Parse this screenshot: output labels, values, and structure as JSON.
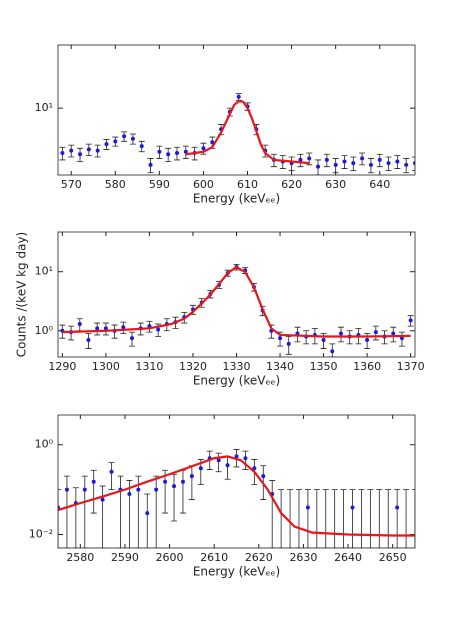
{
  "chart_data": [
    {
      "type": "scatter",
      "xlabel": "Energy (keVₑₑ)",
      "log_y": true,
      "color": "#1c1cd6",
      "error_color": "#222222",
      "xlim": [
        567,
        648
      ],
      "ylim": [
        1.5,
        60
      ],
      "xticks": [
        570,
        580,
        590,
        600,
        610,
        620,
        630,
        640
      ],
      "yticks": [
        {
          "value": 10,
          "label": "10¹"
        }
      ],
      "x": [
        568,
        570,
        572,
        574,
        576,
        578,
        580,
        582,
        584,
        586,
        588,
        590,
        592,
        594,
        596,
        598,
        600,
        602,
        604,
        606,
        608,
        610,
        612,
        614,
        616,
        618,
        620,
        622,
        624,
        626,
        628,
        630,
        632,
        634,
        636,
        638,
        640,
        642,
        644,
        646,
        648
      ],
      "values": [
        2.8,
        3.0,
        2.7,
        3.1,
        3.0,
        3.6,
        3.9,
        4.5,
        4.2,
        3.4,
        2.0,
        2.9,
        2.7,
        2.8,
        2.9,
        2.8,
        3.2,
        3.8,
        5.5,
        9.0,
        13.8,
        10.5,
        5.5,
        3.0,
        2.3,
        2.2,
        2.1,
        2.3,
        2.4,
        1.9,
        2.3,
        2.0,
        2.2,
        2.1,
        2.4,
        2.0,
        2.3,
        2.1,
        2.2,
        2.0,
        2.1
      ],
      "errors": [
        0.5,
        0.5,
        0.5,
        0.5,
        0.5,
        0.5,
        0.5,
        0.6,
        0.6,
        0.5,
        0.4,
        0.5,
        0.5,
        0.5,
        0.5,
        0.5,
        0.5,
        0.6,
        0.8,
        1.0,
        1.3,
        1.1,
        0.8,
        0.5,
        0.4,
        0.4,
        0.4,
        0.4,
        0.4,
        0.4,
        0.4,
        0.4,
        0.4,
        0.4,
        0.4,
        0.4,
        0.4,
        0.4,
        0.4,
        0.4,
        0.4
      ],
      "fit": {
        "color": "#e8161b",
        "x": [
          596,
          600,
          602,
          604,
          606,
          607,
          608,
          609,
          610,
          611,
          612,
          613,
          614,
          616,
          620,
          624
        ],
        "values": [
          2.7,
          2.9,
          3.3,
          5.0,
          8.5,
          11,
          12.2,
          12,
          10,
          7.5,
          5.2,
          3.6,
          2.8,
          2.3,
          2.2,
          2.1
        ]
      }
    },
    {
      "type": "scatter",
      "xlabel": "Energy (keVₑₑ)",
      "ylabel": "Counts /(keV  kg  day)",
      "log_y": true,
      "color": "#1c1cd6",
      "error_color": "#222222",
      "xlim": [
        1289,
        1371
      ],
      "ylim": [
        0.36,
        47
      ],
      "xticks": [
        1290,
        1300,
        1310,
        1320,
        1330,
        1340,
        1350,
        1360,
        1370
      ],
      "yticks": [
        {
          "value": 1,
          "label": "10⁰"
        },
        {
          "value": 10,
          "label": "10¹"
        }
      ],
      "x": [
        1290,
        1292,
        1294,
        1296,
        1298,
        1300,
        1302,
        1304,
        1306,
        1308,
        1310,
        1312,
        1314,
        1316,
        1318,
        1320,
        1322,
        1324,
        1326,
        1328,
        1330,
        1332,
        1334,
        1336,
        1338,
        1340,
        1342,
        1344,
        1346,
        1348,
        1350,
        1352,
        1354,
        1356,
        1358,
        1360,
        1362,
        1364,
        1366,
        1368,
        1370
      ],
      "values": [
        1.0,
        0.95,
        1.3,
        0.7,
        1.1,
        1.1,
        1.0,
        1.15,
        0.75,
        1.1,
        1.2,
        1.05,
        1.3,
        1.4,
        1.7,
        2.3,
        3.0,
        4.2,
        6.0,
        9.5,
        12.0,
        10.5,
        5.5,
        2.2,
        1.0,
        0.75,
        0.6,
        0.9,
        0.8,
        0.85,
        0.7,
        0.45,
        0.9,
        0.8,
        0.85,
        0.7,
        0.95,
        0.8,
        0.9,
        0.75,
        1.5
      ],
      "errors": [
        0.25,
        0.25,
        0.3,
        0.2,
        0.25,
        0.25,
        0.25,
        0.25,
        0.2,
        0.25,
        0.25,
        0.25,
        0.3,
        0.3,
        0.35,
        0.4,
        0.5,
        0.6,
        0.8,
        1.1,
        1.3,
        1.2,
        0.8,
        0.4,
        0.25,
        0.2,
        0.2,
        0.25,
        0.2,
        0.25,
        0.2,
        0.15,
        0.25,
        0.2,
        0.25,
        0.2,
        0.25,
        0.2,
        0.25,
        0.2,
        0.3
      ],
      "fit": {
        "color": "#e8161b",
        "x": [
          1290,
          1300,
          1310,
          1315,
          1318,
          1320,
          1322,
          1324,
          1326,
          1328,
          1330,
          1332,
          1334,
          1336,
          1338,
          1340,
          1350,
          1360,
          1370
        ],
        "values": [
          0.95,
          1.0,
          1.1,
          1.3,
          1.6,
          2.1,
          2.9,
          4.1,
          6.2,
          9.5,
          12,
          9.8,
          5.5,
          2.3,
          1.1,
          0.85,
          0.8,
          0.8,
          0.82
        ]
      }
    },
    {
      "type": "scatter",
      "xlabel": "Energy (keVₑₑ)",
      "log_y": true,
      "color": "#1c1cd6",
      "error_color": "#222222",
      "xlim": [
        2575,
        2655
      ],
      "ylim": [
        0.005,
        4.6
      ],
      "xticks": [
        2580,
        2590,
        2600,
        2610,
        2620,
        2630,
        2640,
        2650
      ],
      "yticks": [
        {
          "value": 0.01,
          "label": "10⁻²"
        },
        {
          "value": 1,
          "label": "10⁰"
        }
      ],
      "x": [
        2575,
        2577,
        2579,
        2581,
        2583,
        2585,
        2587,
        2589,
        2591,
        2593,
        2595,
        2597,
        2599,
        2601,
        2603,
        2605,
        2607,
        2609,
        2611,
        2613,
        2615,
        2617,
        2619,
        2621,
        2623,
        2625,
        2627,
        2629,
        2631,
        2633,
        2635,
        2637,
        2639,
        2641,
        2643,
        2645,
        2647,
        2649,
        2651,
        2653,
        2655
      ],
      "values": [
        0.04,
        0.1,
        0.05,
        0.1,
        0.15,
        0.06,
        0.25,
        0.1,
        0.08,
        0.1,
        0.03,
        0.1,
        0.15,
        0.12,
        0.15,
        0.2,
        0.3,
        0.5,
        0.45,
        0.35,
        0.55,
        0.5,
        0.3,
        0.2,
        0.08,
        0,
        0,
        0,
        0.04,
        0,
        0,
        0,
        0,
        0.04,
        0,
        0,
        0,
        0,
        0.04,
        0,
        0
      ],
      "errors": [
        0.06,
        0.1,
        0.06,
        0.1,
        0.12,
        0.06,
        0.15,
        0.1,
        0.08,
        0.1,
        0.05,
        0.1,
        0.12,
        0.1,
        0.12,
        0.14,
        0.17,
        0.22,
        0.2,
        0.18,
        0.23,
        0.22,
        0.17,
        0.14,
        0.08,
        0.1,
        0.1,
        0.1,
        0.06,
        0.1,
        0.1,
        0.1,
        0.1,
        0.06,
        0.1,
        0.1,
        0.1,
        0.1,
        0.06,
        0.1,
        0.1
      ],
      "fit": {
        "color": "#e8161b",
        "x": [
          2575,
          2580,
          2585,
          2590,
          2595,
          2600,
          2605,
          2610,
          2613,
          2616,
          2619,
          2622,
          2625,
          2628,
          2632,
          2640,
          2650,
          2655
        ],
        "values": [
          0.035,
          0.05,
          0.07,
          0.1,
          0.15,
          0.22,
          0.33,
          0.5,
          0.55,
          0.45,
          0.25,
          0.1,
          0.03,
          0.015,
          0.011,
          0.01,
          0.0095,
          0.0095
        ]
      }
    }
  ]
}
